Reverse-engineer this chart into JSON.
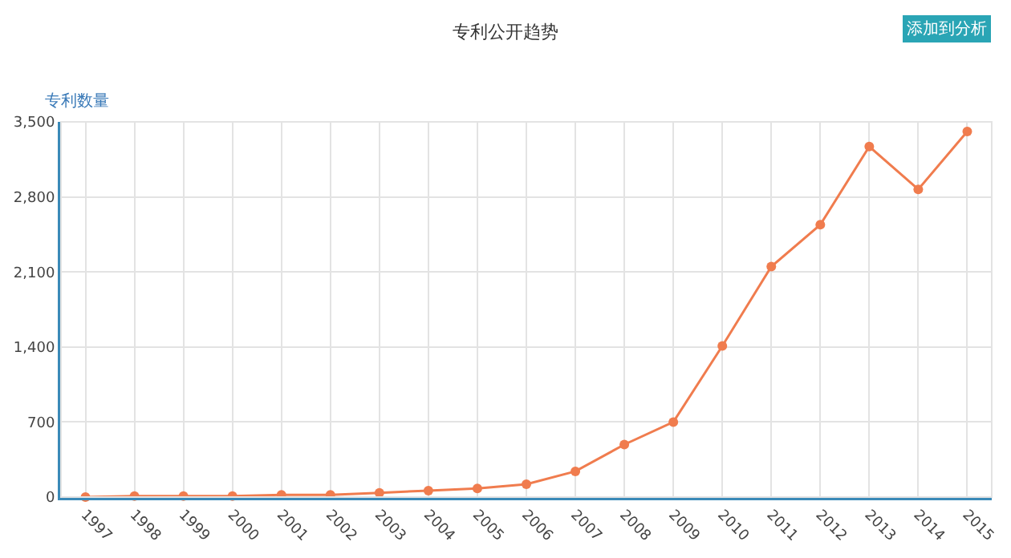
{
  "chart_data": {
    "type": "line",
    "title": "专利公开趋势",
    "ylabel": "专利数量",
    "annotations": [
      "添加到分析"
    ],
    "categories": [
      "1997",
      "1998",
      "1999",
      "2000",
      "2001",
      "2002",
      "2003",
      "2004",
      "2005",
      "2006",
      "2007",
      "2008",
      "2009",
      "2010",
      "2011",
      "2012",
      "2013",
      "2014",
      "2015"
    ],
    "series": [
      {
        "color": "#f07c4e",
        "values": [
          0,
          10,
          10,
          10,
          20,
          20,
          40,
          60,
          80,
          120,
          240,
          490,
          700,
          1410,
          2150,
          2540,
          3270,
          2870,
          3410
        ]
      }
    ],
    "ylim": [
      0,
      3500
    ],
    "yticks": [
      0,
      {
        "value": 700,
        "label": "700"
      },
      {
        "value": 1400,
        "label": "1,400"
      },
      {
        "value": 2100,
        "label": "2,100"
      },
      {
        "value": 2800,
        "label": "2,800"
      },
      {
        "value": 3500,
        "label": "3,500"
      }
    ],
    "grid": true,
    "marker": "circle",
    "line_style": "solid",
    "legend": false
  }
}
